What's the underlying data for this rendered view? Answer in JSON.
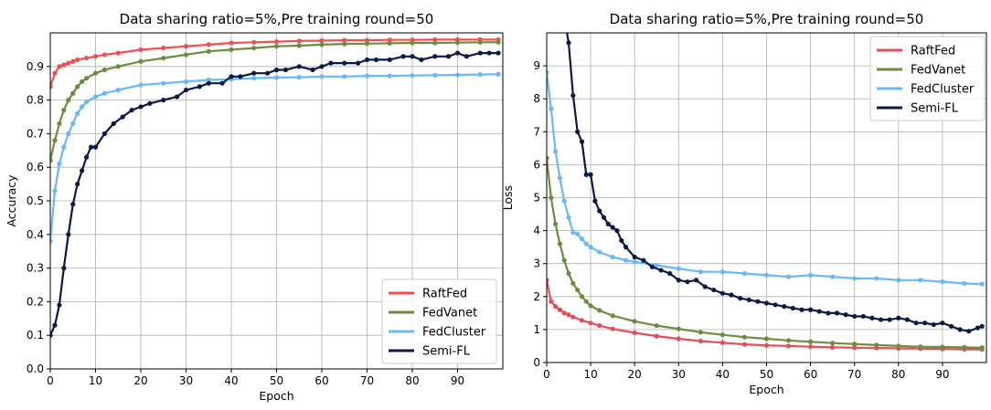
{
  "chart_data": [
    {
      "type": "line",
      "title": "Data sharing ratio=5%,Pre training round=50",
      "xlabel": "Epoch",
      "ylabel": "Accuracy",
      "xlim": [
        0,
        100
      ],
      "ylim": [
        0,
        1.0
      ],
      "xticks": [
        0,
        10,
        20,
        30,
        40,
        50,
        60,
        70,
        80,
        90
      ],
      "yticks": [
        0.0,
        0.1,
        0.2,
        0.3,
        0.4,
        0.5,
        0.6,
        0.7,
        0.8,
        0.9
      ],
      "grid": true,
      "legend_position": "lower-right",
      "series": [
        {
          "name": "RaftFed",
          "color": "#f05050",
          "x": [
            0,
            1,
            2,
            3,
            4,
            5,
            6,
            8,
            10,
            12,
            15,
            20,
            25,
            30,
            35,
            40,
            45,
            50,
            55,
            60,
            65,
            70,
            75,
            80,
            85,
            90,
            95,
            99
          ],
          "y": [
            0.84,
            0.88,
            0.9,
            0.905,
            0.91,
            0.915,
            0.92,
            0.925,
            0.93,
            0.935,
            0.94,
            0.95,
            0.955,
            0.96,
            0.965,
            0.97,
            0.972,
            0.974,
            0.976,
            0.977,
            0.978,
            0.978,
            0.979,
            0.979,
            0.98,
            0.98,
            0.98,
            0.98
          ]
        },
        {
          "name": "FedVanet",
          "color": "#6b8e3e",
          "x": [
            0,
            1,
            2,
            3,
            4,
            5,
            6,
            7,
            8,
            10,
            12,
            15,
            20,
            25,
            30,
            35,
            40,
            45,
            50,
            55,
            60,
            65,
            70,
            75,
            80,
            85,
            90,
            95,
            99
          ],
          "y": [
            0.62,
            0.68,
            0.73,
            0.77,
            0.8,
            0.82,
            0.84,
            0.855,
            0.865,
            0.88,
            0.89,
            0.9,
            0.915,
            0.925,
            0.935,
            0.945,
            0.95,
            0.955,
            0.96,
            0.962,
            0.965,
            0.967,
            0.968,
            0.969,
            0.97,
            0.97,
            0.971,
            0.972,
            0.972
          ]
        },
        {
          "name": "FedCluster",
          "color": "#6ab8f7",
          "x": [
            0,
            1,
            2,
            3,
            4,
            5,
            6,
            7,
            8,
            10,
            12,
            15,
            20,
            25,
            30,
            35,
            40,
            45,
            50,
            55,
            60,
            65,
            70,
            75,
            80,
            85,
            90,
            95,
            99
          ],
          "y": [
            0.38,
            0.53,
            0.61,
            0.66,
            0.7,
            0.73,
            0.76,
            0.78,
            0.795,
            0.81,
            0.82,
            0.83,
            0.845,
            0.85,
            0.855,
            0.86,
            0.862,
            0.865,
            0.867,
            0.868,
            0.87,
            0.87,
            0.872,
            0.872,
            0.873,
            0.874,
            0.875,
            0.876,
            0.877
          ]
        },
        {
          "name": "Semi-FL",
          "color": "#0b1a44",
          "x": [
            0,
            1,
            2,
            3,
            4,
            5,
            6,
            7,
            8,
            9,
            10,
            12,
            14,
            16,
            18,
            20,
            22,
            25,
            28,
            30,
            33,
            35,
            38,
            40,
            42,
            45,
            48,
            50,
            52,
            55,
            58,
            60,
            62,
            65,
            68,
            70,
            72,
            75,
            78,
            80,
            82,
            85,
            88,
            90,
            92,
            95,
            97,
            99
          ],
          "y": [
            0.1,
            0.13,
            0.19,
            0.3,
            0.4,
            0.49,
            0.55,
            0.59,
            0.63,
            0.66,
            0.66,
            0.7,
            0.73,
            0.75,
            0.77,
            0.78,
            0.79,
            0.8,
            0.81,
            0.83,
            0.84,
            0.85,
            0.85,
            0.87,
            0.87,
            0.88,
            0.88,
            0.89,
            0.89,
            0.9,
            0.89,
            0.9,
            0.91,
            0.91,
            0.91,
            0.92,
            0.92,
            0.92,
            0.93,
            0.93,
            0.92,
            0.93,
            0.93,
            0.94,
            0.93,
            0.94,
            0.94,
            0.94
          ]
        }
      ]
    },
    {
      "type": "line",
      "title": "Data sharing ratio=5%,Pre training round=50",
      "xlabel": "Epoch",
      "ylabel": "Loss",
      "xlim": [
        0,
        100
      ],
      "ylim": [
        0,
        10
      ],
      "xticks": [
        0,
        10,
        20,
        30,
        40,
        50,
        60,
        70,
        80,
        90
      ],
      "yticks": [
        0,
        1,
        2,
        3,
        4,
        5,
        6,
        7,
        8,
        9
      ],
      "grid": true,
      "legend_position": "top-right",
      "series": [
        {
          "name": "RaftFed",
          "color": "#e0505a",
          "x": [
            0,
            1,
            2,
            3,
            4,
            5,
            6,
            8,
            10,
            12,
            15,
            20,
            25,
            30,
            35,
            40,
            45,
            50,
            55,
            60,
            65,
            70,
            75,
            80,
            85,
            90,
            95,
            99
          ],
          "y": [
            2.5,
            1.85,
            1.7,
            1.6,
            1.5,
            1.45,
            1.38,
            1.28,
            1.2,
            1.12,
            1.02,
            0.9,
            0.8,
            0.72,
            0.65,
            0.6,
            0.55,
            0.52,
            0.5,
            0.48,
            0.46,
            0.45,
            0.44,
            0.43,
            0.42,
            0.41,
            0.4,
            0.4
          ]
        },
        {
          "name": "FedVanet",
          "color": "#6b8e3e",
          "x": [
            0,
            1,
            2,
            3,
            4,
            5,
            6,
            7,
            8,
            9,
            10,
            12,
            15,
            20,
            25,
            30,
            35,
            40,
            45,
            50,
            55,
            60,
            65,
            70,
            75,
            80,
            85,
            90,
            95,
            99
          ],
          "y": [
            6.2,
            5.0,
            4.2,
            3.6,
            3.1,
            2.7,
            2.4,
            2.2,
            2.0,
            1.85,
            1.72,
            1.58,
            1.42,
            1.25,
            1.12,
            1.02,
            0.92,
            0.84,
            0.77,
            0.72,
            0.67,
            0.63,
            0.59,
            0.56,
            0.53,
            0.5,
            0.48,
            0.47,
            0.46,
            0.45
          ]
        },
        {
          "name": "FedCluster",
          "color": "#6ab8f7",
          "x": [
            0,
            1,
            2,
            3,
            4,
            5,
            6,
            7,
            8,
            9,
            10,
            12,
            15,
            18,
            20,
            25,
            30,
            35,
            40,
            45,
            50,
            55,
            60,
            65,
            70,
            75,
            80,
            85,
            90,
            95,
            99
          ],
          "y": [
            8.8,
            7.7,
            6.4,
            5.6,
            4.9,
            4.4,
            3.95,
            3.9,
            3.75,
            3.6,
            3.5,
            3.35,
            3.2,
            3.1,
            3.05,
            2.95,
            2.85,
            2.75,
            2.75,
            2.7,
            2.65,
            2.6,
            2.65,
            2.6,
            2.55,
            2.55,
            2.5,
            2.5,
            2.45,
            2.4,
            2.38
          ]
        },
        {
          "name": "Semi-FL",
          "color": "#0b1a44",
          "x": [
            4,
            5,
            6,
            7,
            8,
            9,
            10,
            11,
            12,
            13,
            14,
            15,
            16,
            17,
            18,
            20,
            22,
            24,
            26,
            28,
            30,
            32,
            34,
            36,
            38,
            40,
            42,
            44,
            46,
            48,
            50,
            52,
            54,
            56,
            58,
            60,
            62,
            64,
            66,
            68,
            70,
            72,
            74,
            76,
            78,
            80,
            82,
            84,
            86,
            88,
            90,
            92,
            94,
            96,
            98,
            99
          ],
          "y": [
            10.5,
            9.7,
            8.1,
            7.0,
            6.7,
            5.7,
            5.7,
            4.9,
            4.6,
            4.4,
            4.2,
            4.1,
            4.0,
            3.7,
            3.5,
            3.2,
            3.1,
            2.9,
            2.8,
            2.7,
            2.5,
            2.45,
            2.5,
            2.3,
            2.2,
            2.1,
            2.05,
            1.95,
            1.9,
            1.85,
            1.8,
            1.75,
            1.7,
            1.65,
            1.6,
            1.6,
            1.55,
            1.5,
            1.5,
            1.45,
            1.4,
            1.4,
            1.35,
            1.3,
            1.3,
            1.35,
            1.3,
            1.2,
            1.2,
            1.15,
            1.2,
            1.1,
            1.0,
            0.95,
            1.05,
            1.1
          ]
        }
      ]
    }
  ]
}
